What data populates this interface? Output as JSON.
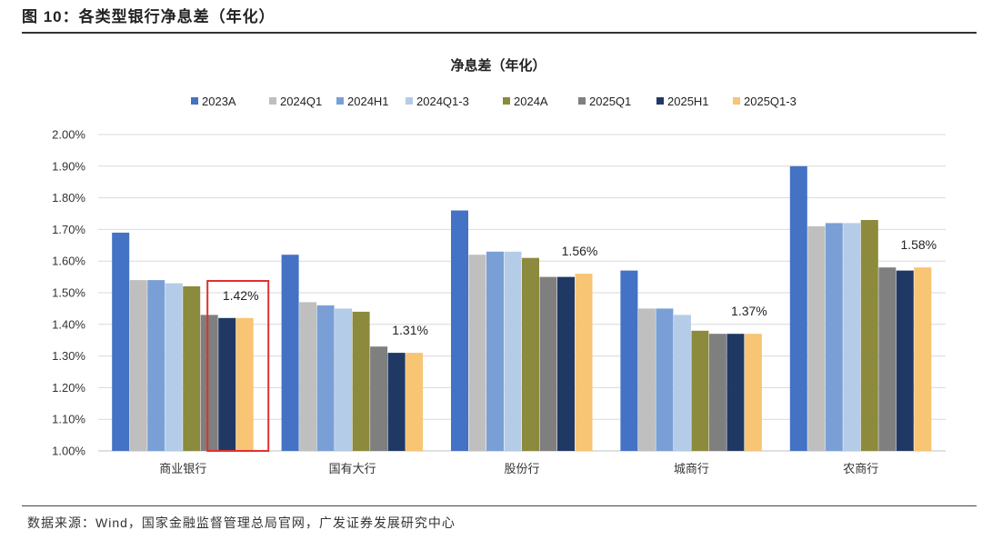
{
  "figure_label": "图 10：各类型银行净息差（年化）",
  "source": "数据来源：Wind，国家金融监督管理总局官网，广发证券发展研究中心",
  "chart_data": {
    "type": "bar",
    "title": "净息差（年化）",
    "categories": [
      "商业银行",
      "国有大行",
      "股份行",
      "城商行",
      "农商行"
    ],
    "series": [
      {
        "name": "2023A",
        "color": "#4472C4",
        "values": [
          1.69,
          1.62,
          1.76,
          1.57,
          1.9
        ]
      },
      {
        "name": "2024Q1",
        "color": "#BFBFBF",
        "values": [
          1.54,
          1.47,
          1.62,
          1.45,
          1.71
        ]
      },
      {
        "name": "2024H1",
        "color": "#7A9FD6",
        "values": [
          1.54,
          1.46,
          1.63,
          1.45,
          1.72
        ]
      },
      {
        "name": "2024Q1-3",
        "color": "#B4CCE8",
        "values": [
          1.53,
          1.45,
          1.63,
          1.43,
          1.72
        ]
      },
      {
        "name": "2024A",
        "color": "#8C8A3C",
        "values": [
          1.52,
          1.44,
          1.61,
          1.38,
          1.73
        ]
      },
      {
        "name": "2025Q1",
        "color": "#7F7F7F",
        "values": [
          1.43,
          1.33,
          1.55,
          1.37,
          1.58
        ]
      },
      {
        "name": "2025H1",
        "color": "#203864",
        "values": [
          1.42,
          1.31,
          1.55,
          1.37,
          1.57
        ]
      },
      {
        "name": "2025Q1-3",
        "color": "#F7C574",
        "values": [
          1.42,
          1.31,
          1.56,
          1.37,
          1.58
        ]
      }
    ],
    "data_labels": [
      "1.42%",
      "1.31%",
      "1.56%",
      "1.37%",
      "1.58%"
    ],
    "ylim": [
      1.0,
      2.0
    ],
    "yticks": [
      "1.00%",
      "1.10%",
      "1.20%",
      "1.30%",
      "1.40%",
      "1.50%",
      "1.60%",
      "1.70%",
      "1.80%",
      "1.90%",
      "2.00%"
    ],
    "grid": true,
    "legend_position": "top",
    "highlight": "商业银行 2025H1–2025Q1-3 (red box)",
    "highlight_color": "#E03030"
  }
}
